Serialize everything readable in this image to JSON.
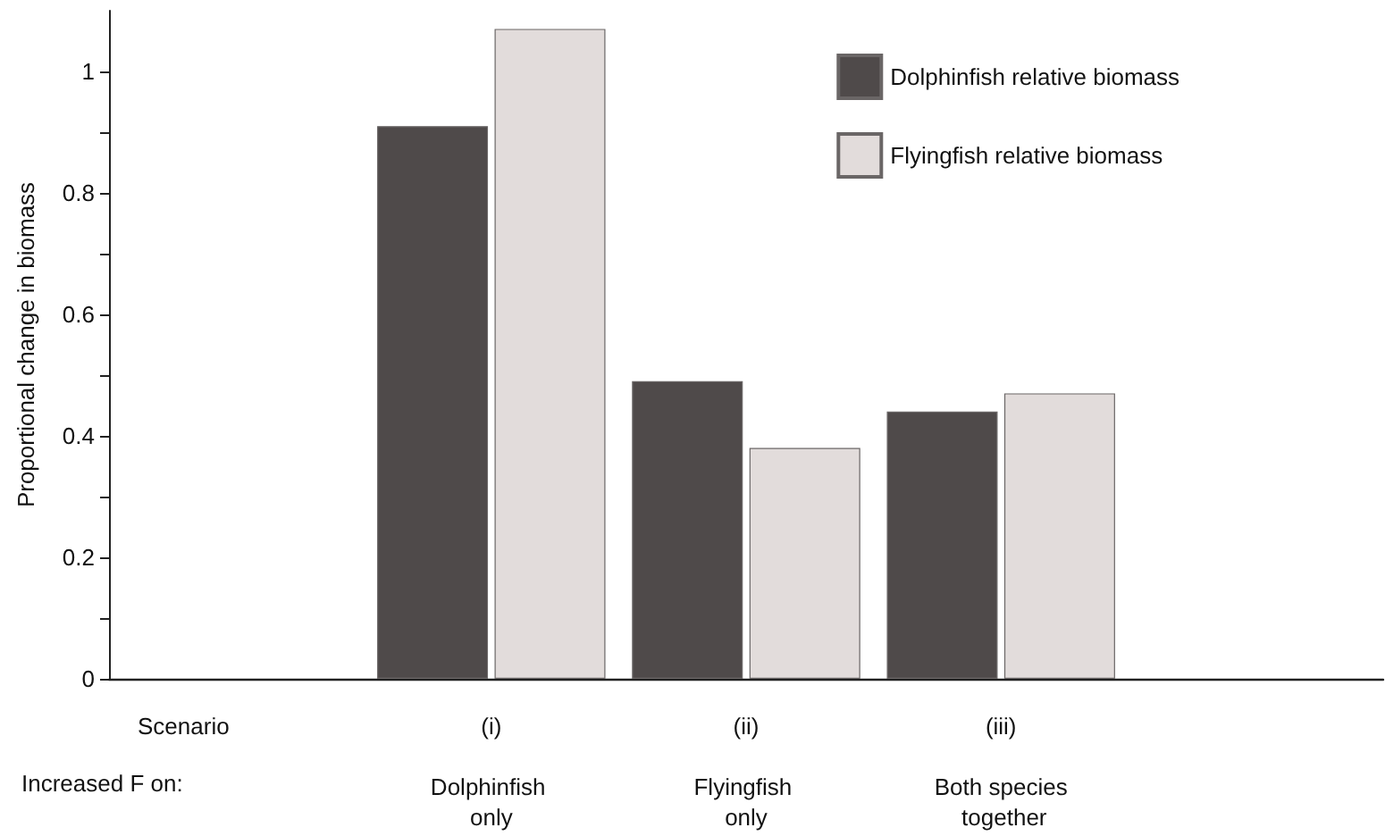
{
  "chart_data": {
    "type": "bar",
    "ylabel": "Proportional change in biomass",
    "categories": [
      null,
      "(i)",
      "(ii)",
      "(iii)",
      null
    ],
    "series": [
      {
        "name": "Dolphinfish relative biomass",
        "color": "#4f4a4a",
        "values": [
          null,
          0.91,
          0.49,
          0.44,
          null
        ]
      },
      {
        "name": "Flyingfish relative biomass",
        "color": "#e2dcdb",
        "values": [
          null,
          1.07,
          0.38,
          0.47,
          null
        ]
      }
    ],
    "ylim": [
      0,
      1.1
    ],
    "yticks": [
      0,
      {
        "value": 0.1,
        "label": null
      },
      0.2,
      {
        "value": 0.3,
        "label": null
      },
      0.4,
      {
        "value": 0.5,
        "label": null
      },
      0.6,
      {
        "value": 0.7,
        "label": null
      },
      0.8,
      {
        "value": 0.9,
        "label": null
      },
      1
    ],
    "grid": false,
    "legend": "top right",
    "annotations": [
      "Scenario",
      "Increased F on:",
      "Dolphinfish only",
      "Flyingfish only",
      "Both species together"
    ]
  }
}
